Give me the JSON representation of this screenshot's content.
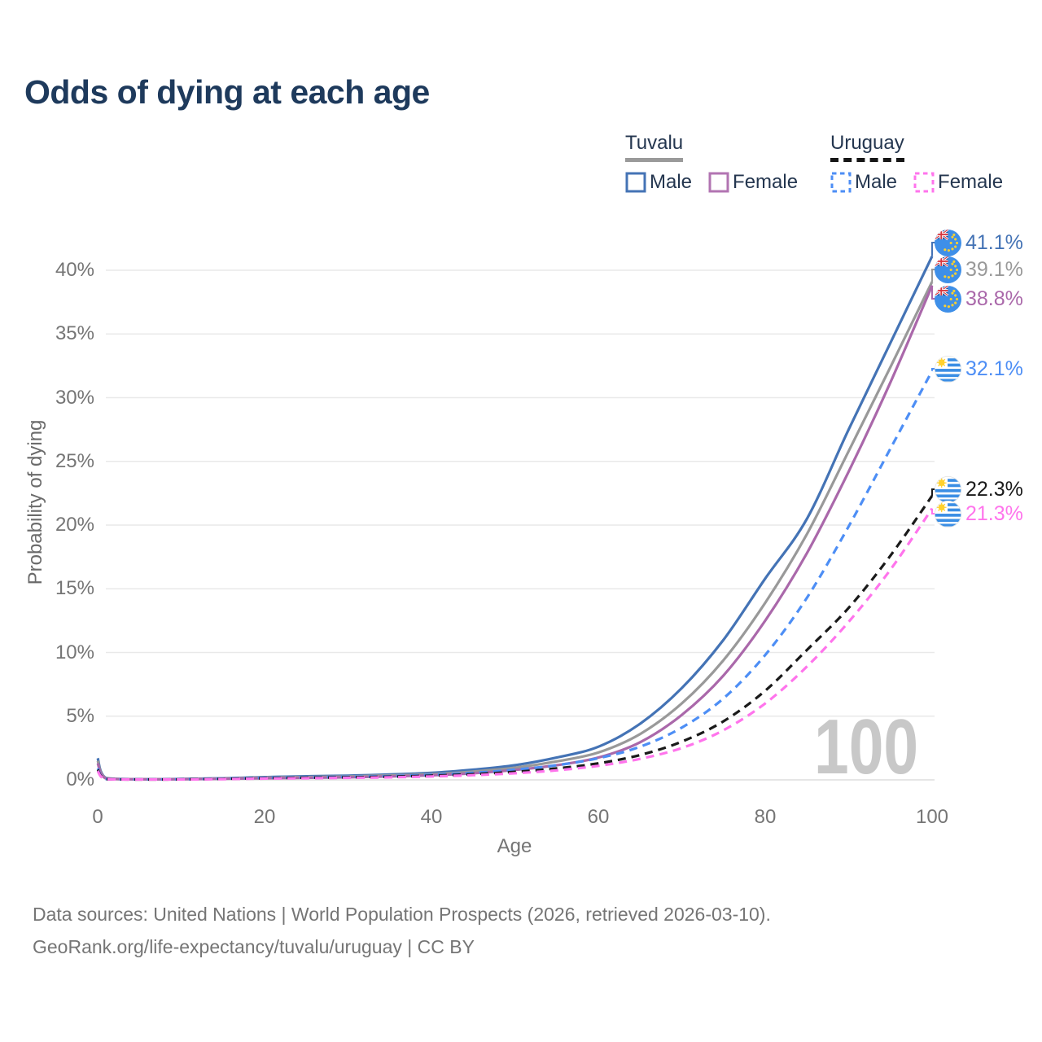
{
  "title": "Odds of dying at each age",
  "legend": {
    "groups": [
      {
        "name": "Tuvalu",
        "line_style": "solid",
        "underline_color": "#9a9a9a",
        "items": [
          {
            "label": "Male",
            "color": "#4473b5",
            "dashed": false
          },
          {
            "label": "Female",
            "color": "#b274b2",
            "dashed": false
          }
        ]
      },
      {
        "name": "Uruguay",
        "line_style": "dashed",
        "underline_color": "#161616",
        "items": [
          {
            "label": "Male",
            "color": "#4d8ef5",
            "dashed": true
          },
          {
            "label": "Female",
            "color": "#ff74ec",
            "dashed": true
          }
        ]
      }
    ]
  },
  "chart_data": {
    "type": "line",
    "title": "Odds of dying at each age",
    "xlabel": "Age",
    "ylabel": "Probability of dying",
    "xlim": [
      0,
      100
    ],
    "ylim": [
      0,
      42
    ],
    "x_ticks": [
      0,
      20,
      40,
      60,
      80,
      100
    ],
    "y_tick_values": [
      0,
      5,
      10,
      15,
      20,
      25,
      30,
      35,
      40
    ],
    "y_tick_suffix": "%",
    "grid": "horizontal",
    "legend_position": "top-right",
    "watermark": "100",
    "x": [
      0,
      1,
      5,
      10,
      15,
      20,
      25,
      30,
      35,
      40,
      45,
      50,
      55,
      60,
      65,
      70,
      75,
      80,
      85,
      90,
      95,
      100
    ],
    "series": [
      {
        "name": "Tuvalu Male",
        "country": "Tuvalu",
        "sex": "Male",
        "color": "#4473b5",
        "dash": "solid",
        "flag": "tuvalu",
        "end_label": "41.1%",
        "values": [
          1.7,
          0.15,
          0.06,
          0.07,
          0.12,
          0.22,
          0.28,
          0.33,
          0.42,
          0.55,
          0.8,
          1.15,
          1.75,
          2.6,
          4.4,
          7.2,
          11.0,
          15.8,
          20.5,
          27.5,
          34.3,
          41.1
        ]
      },
      {
        "name": "Tuvalu Both sexes",
        "country": "Tuvalu",
        "sex": "Both",
        "color": "#999999",
        "dash": "solid",
        "flag": "tuvalu",
        "end_label": "39.1%",
        "values": [
          1.5,
          0.13,
          0.05,
          0.06,
          0.1,
          0.18,
          0.22,
          0.27,
          0.35,
          0.45,
          0.65,
          0.95,
          1.45,
          2.15,
          3.6,
          6.0,
          9.4,
          13.9,
          19.3,
          25.8,
          32.4,
          39.1
        ]
      },
      {
        "name": "Tuvalu Female",
        "country": "Tuvalu",
        "sex": "Female",
        "color": "#aa68aa",
        "dash": "solid",
        "flag": "tuvalu",
        "end_label": "38.8%",
        "values": [
          1.3,
          0.11,
          0.05,
          0.05,
          0.08,
          0.13,
          0.16,
          0.2,
          0.27,
          0.36,
          0.52,
          0.78,
          1.15,
          1.75,
          2.95,
          5.1,
          8.2,
          12.5,
          17.8,
          24.2,
          31.2,
          38.8
        ]
      },
      {
        "name": "Uruguay Male",
        "country": "Uruguay",
        "sex": "Male",
        "color": "#4d8ef5",
        "dash": "dashed",
        "flag": "uruguay",
        "end_label": "32.1%",
        "values": [
          0.9,
          0.07,
          0.04,
          0.05,
          0.1,
          0.16,
          0.2,
          0.24,
          0.3,
          0.4,
          0.55,
          0.8,
          1.15,
          1.7,
          2.6,
          4.1,
          6.4,
          9.8,
          14.3,
          19.9,
          26.0,
          32.1
        ]
      },
      {
        "name": "Uruguay Both sexes",
        "country": "Uruguay",
        "sex": "Both",
        "color": "#1a1a1a",
        "dash": "dashed",
        "flag": "uruguay",
        "end_label": "22.3%",
        "values": [
          0.8,
          0.06,
          0.03,
          0.04,
          0.08,
          0.13,
          0.17,
          0.2,
          0.25,
          0.33,
          0.45,
          0.63,
          0.9,
          1.3,
          1.95,
          3.0,
          4.6,
          7.0,
          10.2,
          13.5,
          17.6,
          22.3
        ]
      },
      {
        "name": "Uruguay Female",
        "country": "Uruguay",
        "sex": "Female",
        "color": "#ff74ec",
        "dash": "dashed",
        "flag": "uruguay",
        "end_label": "21.3%",
        "values": [
          0.7,
          0.05,
          0.03,
          0.03,
          0.06,
          0.1,
          0.13,
          0.16,
          0.2,
          0.27,
          0.37,
          0.52,
          0.75,
          1.1,
          1.65,
          2.5,
          3.9,
          6.0,
          8.9,
          12.4,
          16.5,
          21.3
        ]
      }
    ]
  },
  "footer": {
    "line1": "Data sources: United Nations | World Population Prospects (2026, retrieved 2026-03-10).",
    "line2": "GeoRank.org/life-expectancy/tuvalu/uruguay | CC BY"
  }
}
